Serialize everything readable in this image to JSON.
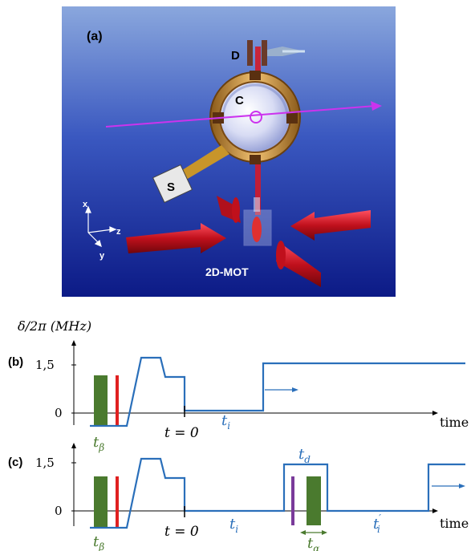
{
  "panel_a": {
    "label": "(a)",
    "labels": {
      "detector": "D",
      "cavity": "C",
      "source": "S",
      "mot": "2D-MOT"
    },
    "axes": {
      "x": "x",
      "y": "y",
      "z": "z"
    },
    "colors": {
      "bg_top": "#8aa7dd",
      "bg_bottom": "#0c1a86",
      "laser": "#d21a2a",
      "probe": "#cc33ee",
      "ring": "#d9a35a"
    }
  },
  "panel_b": {
    "label": "(b)",
    "ylabel": "δ/2π (MHz)",
    "yticks": [
      "1,5",
      "0"
    ],
    "xlabel": "time",
    "t0_label": "t = 0",
    "ti_label": "t",
    "ti_sub": "i",
    "tbeta_label": "t",
    "tbeta_sub": "β"
  },
  "panel_c": {
    "label": "(c)",
    "yticks": [
      "1,5",
      "0"
    ],
    "xlabel": "time",
    "t0_label": "t = 0",
    "ti_label": "t",
    "ti_sub": "i",
    "tiprime_label": "t",
    "tiprime_sub": "i",
    "tiprime_mark": "′",
    "td_label": "t",
    "td_sub": "d",
    "tbeta_label": "t",
    "tbeta_sub": "β",
    "talpha_label": "t",
    "talpha_sub": "α"
  },
  "colors": {
    "curve": "#2a6fba",
    "green": "#4a7a2e",
    "red": "#e02020",
    "purple": "#7a3b9a",
    "label_blue": "#2a6fba",
    "label_green": "#4a7a2e"
  }
}
